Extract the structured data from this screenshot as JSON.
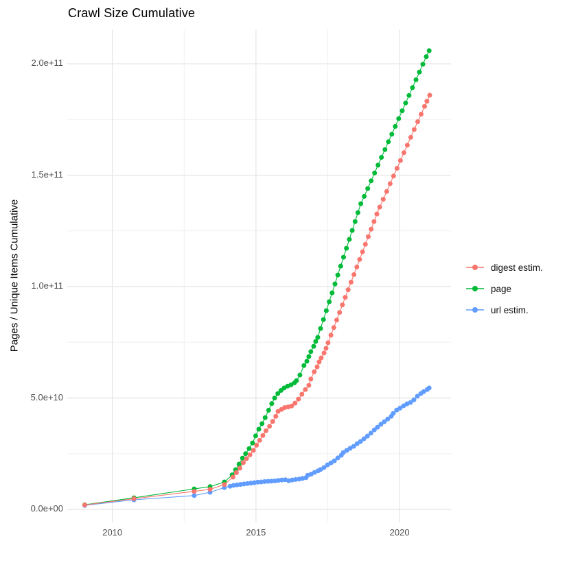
{
  "title": "Crawl Size Cumulative",
  "chart_data": {
    "type": "line",
    "title": "Crawl Size Cumulative",
    "xlabel": "",
    "ylabel": "Pages / Unique Items Cumulative",
    "grid": true,
    "legend_position": "right",
    "x_range": [
      2008.43,
      2021.79
    ],
    "y_range_e9": [
      -5.85,
      215.4
    ],
    "x_ticks": {
      "major": [
        2010,
        2015,
        2020
      ],
      "labels": [
        "2010",
        "2015",
        "2020"
      ],
      "minor": [
        2012.5,
        2017.5
      ]
    },
    "y_ticks": {
      "major_values_e9": [
        0,
        50,
        100,
        150,
        200
      ],
      "labels": [
        "0.0e+00",
        "5.0e+10",
        "1.0e+11",
        "1.5e+11",
        "2.0e+11"
      ],
      "minor_values_e9": [
        25,
        75,
        125,
        175
      ]
    },
    "value_unit": "1e9 (billions of pages / unique items)",
    "series": [
      {
        "name": "digest estim.",
        "color": "#F8766D",
        "points_year_e9": [
          [
            2009.04,
            2.0
          ],
          [
            2010.75,
            4.8
          ],
          [
            2012.85,
            8.1
          ],
          [
            2013.4,
            9.0
          ],
          [
            2013.9,
            11.2
          ],
          [
            2014.2,
            14.5
          ],
          [
            2014.32,
            16.5
          ],
          [
            2014.44,
            18.5
          ],
          [
            2014.56,
            21.0
          ],
          [
            2014.67,
            22.8
          ],
          [
            2014.79,
            24.5
          ],
          [
            2014.91,
            26.5
          ],
          [
            2015.02,
            28.8
          ],
          [
            2015.13,
            31.0
          ],
          [
            2015.24,
            33.2
          ],
          [
            2015.35,
            35.3
          ],
          [
            2015.47,
            37.3
          ],
          [
            2015.58,
            39.5
          ],
          [
            2015.69,
            41.8
          ],
          [
            2015.77,
            44.0
          ],
          [
            2015.89,
            44.9
          ],
          [
            2016.0,
            45.7
          ],
          [
            2016.12,
            46.0
          ],
          [
            2016.24,
            46.4
          ],
          [
            2016.36,
            47.7
          ],
          [
            2016.48,
            49.5
          ],
          [
            2016.6,
            51.7
          ],
          [
            2016.72,
            53.8
          ],
          [
            2016.84,
            55.7
          ],
          [
            2016.91,
            58.5
          ],
          [
            2017.03,
            61.8
          ],
          [
            2017.13,
            64.0
          ],
          [
            2017.2,
            66.2
          ],
          [
            2017.27,
            68.0
          ],
          [
            2017.37,
            70.2
          ],
          [
            2017.44,
            72.3
          ],
          [
            2017.51,
            74.8
          ],
          [
            2017.61,
            78.2
          ],
          [
            2017.71,
            81.6
          ],
          [
            2017.81,
            85.0
          ],
          [
            2017.91,
            88.4
          ],
          [
            2018.01,
            91.8
          ],
          [
            2018.11,
            95.2
          ],
          [
            2018.21,
            98.6
          ],
          [
            2018.31,
            102.0
          ],
          [
            2018.41,
            105.4
          ],
          [
            2018.51,
            108.8
          ],
          [
            2018.61,
            112.2
          ],
          [
            2018.71,
            115.6
          ],
          [
            2018.81,
            119.0
          ],
          [
            2018.91,
            122.4
          ],
          [
            2019.01,
            125.8
          ],
          [
            2019.11,
            129.2
          ],
          [
            2019.21,
            132.6
          ],
          [
            2019.31,
            135.7
          ],
          [
            2019.43,
            139.2
          ],
          [
            2019.55,
            142.7
          ],
          [
            2019.67,
            146.2
          ],
          [
            2019.79,
            149.6
          ],
          [
            2019.91,
            153.1
          ],
          [
            2020.03,
            156.6
          ],
          [
            2020.15,
            160.1
          ],
          [
            2020.27,
            163.5
          ],
          [
            2020.39,
            167.0
          ],
          [
            2020.51,
            170.5
          ],
          [
            2020.63,
            174.0
          ],
          [
            2020.75,
            177.4
          ],
          [
            2020.87,
            180.9
          ],
          [
            2020.95,
            183.2
          ],
          [
            2021.05,
            185.9
          ]
        ]
      },
      {
        "name": "page",
        "color": "#00BA38",
        "points_year_e9": [
          [
            2009.04,
            2.1
          ],
          [
            2010.75,
            5.2
          ],
          [
            2012.85,
            9.2
          ],
          [
            2013.4,
            10.2
          ],
          [
            2013.9,
            12.3
          ],
          [
            2014.17,
            15.5
          ],
          [
            2014.29,
            17.8
          ],
          [
            2014.41,
            20.3
          ],
          [
            2014.53,
            23.0
          ],
          [
            2014.64,
            25.0
          ],
          [
            2014.76,
            27.3
          ],
          [
            2014.88,
            29.8
          ],
          [
            2014.99,
            33.0
          ],
          [
            2015.1,
            36.0
          ],
          [
            2015.21,
            38.5
          ],
          [
            2015.32,
            41.2
          ],
          [
            2015.44,
            44.5
          ],
          [
            2015.55,
            47.5
          ],
          [
            2015.65,
            50.0
          ],
          [
            2015.76,
            52.0
          ],
          [
            2015.87,
            53.4
          ],
          [
            2015.98,
            54.5
          ],
          [
            2016.1,
            55.3
          ],
          [
            2016.22,
            55.9
          ],
          [
            2016.34,
            56.8
          ],
          [
            2016.41,
            57.8
          ],
          [
            2016.53,
            60.3
          ],
          [
            2016.67,
            64.6
          ],
          [
            2016.77,
            66.5
          ],
          [
            2016.84,
            68.6
          ],
          [
            2016.91,
            70.8
          ],
          [
            2017.01,
            73.2
          ],
          [
            2017.08,
            75.4
          ],
          [
            2017.15,
            77.2
          ],
          [
            2017.25,
            81.2
          ],
          [
            2017.35,
            85.2
          ],
          [
            2017.45,
            89.2
          ],
          [
            2017.55,
            93.2
          ],
          [
            2017.65,
            97.2
          ],
          [
            2017.75,
            101.2
          ],
          [
            2017.85,
            105.2
          ],
          [
            2017.95,
            109.2
          ],
          [
            2018.05,
            113.2
          ],
          [
            2018.15,
            117.2
          ],
          [
            2018.25,
            121.2
          ],
          [
            2018.35,
            125.2
          ],
          [
            2018.45,
            129.2
          ],
          [
            2018.55,
            133.2
          ],
          [
            2018.65,
            137.2
          ],
          [
            2018.77,
            140.5
          ],
          [
            2018.89,
            144.0
          ],
          [
            2019.01,
            147.5
          ],
          [
            2019.13,
            151.0
          ],
          [
            2019.25,
            154.5
          ],
          [
            2019.37,
            158.0
          ],
          [
            2019.49,
            161.5
          ],
          [
            2019.61,
            165.0
          ],
          [
            2019.73,
            168.4
          ],
          [
            2019.85,
            171.9
          ],
          [
            2019.97,
            175.4
          ],
          [
            2020.09,
            178.9
          ],
          [
            2020.21,
            182.4
          ],
          [
            2020.33,
            185.8
          ],
          [
            2020.45,
            189.3
          ],
          [
            2020.57,
            192.8
          ],
          [
            2020.69,
            196.3
          ],
          [
            2020.81,
            199.8
          ],
          [
            2020.93,
            203.2
          ],
          [
            2021.03,
            205.9
          ]
        ]
      },
      {
        "name": "url estim.",
        "color": "#619CFF",
        "points_year_e9": [
          [
            2009.04,
            1.8
          ],
          [
            2010.75,
            4.3
          ],
          [
            2012.85,
            6.2
          ],
          [
            2013.4,
            7.7
          ],
          [
            2013.9,
            9.8
          ],
          [
            2014.1,
            10.4
          ],
          [
            2014.22,
            10.8
          ],
          [
            2014.34,
            11.0
          ],
          [
            2014.46,
            11.2
          ],
          [
            2014.58,
            11.4
          ],
          [
            2014.7,
            11.6
          ],
          [
            2014.82,
            11.8
          ],
          [
            2014.94,
            12.0
          ],
          [
            2015.06,
            12.2
          ],
          [
            2015.18,
            12.3
          ],
          [
            2015.3,
            12.5
          ],
          [
            2015.42,
            12.6
          ],
          [
            2015.54,
            12.7
          ],
          [
            2015.66,
            12.8
          ],
          [
            2015.78,
            13.0
          ],
          [
            2015.9,
            13.2
          ],
          [
            2016.02,
            13.3
          ],
          [
            2016.14,
            12.9
          ],
          [
            2016.26,
            13.2
          ],
          [
            2016.38,
            13.4
          ],
          [
            2016.5,
            13.6
          ],
          [
            2016.62,
            13.9
          ],
          [
            2016.74,
            14.2
          ],
          [
            2016.8,
            15.3
          ],
          [
            2016.92,
            15.8
          ],
          [
            2017.04,
            16.6
          ],
          [
            2017.16,
            17.3
          ],
          [
            2017.25,
            17.9
          ],
          [
            2017.37,
            18.8
          ],
          [
            2017.49,
            20.0
          ],
          [
            2017.61,
            20.9
          ],
          [
            2017.73,
            21.8
          ],
          [
            2017.85,
            23.1
          ],
          [
            2017.97,
            24.3
          ],
          [
            2018.04,
            25.5
          ],
          [
            2018.16,
            26.5
          ],
          [
            2018.28,
            27.4
          ],
          [
            2018.4,
            28.3
          ],
          [
            2018.52,
            29.5
          ],
          [
            2018.64,
            30.5
          ],
          [
            2018.76,
            31.7
          ],
          [
            2018.88,
            32.9
          ],
          [
            2019.0,
            34.2
          ],
          [
            2019.12,
            35.7
          ],
          [
            2019.23,
            36.9
          ],
          [
            2019.35,
            38.2
          ],
          [
            2019.47,
            39.4
          ],
          [
            2019.59,
            40.6
          ],
          [
            2019.71,
            41.8
          ],
          [
            2019.78,
            43.1
          ],
          [
            2019.9,
            44.6
          ],
          [
            2020.02,
            45.5
          ],
          [
            2020.14,
            46.5
          ],
          [
            2020.26,
            47.4
          ],
          [
            2020.38,
            48.0
          ],
          [
            2020.5,
            49.2
          ],
          [
            2020.62,
            50.8
          ],
          [
            2020.74,
            52.0
          ],
          [
            2020.84,
            52.9
          ],
          [
            2020.96,
            53.8
          ],
          [
            2021.03,
            54.5
          ]
        ]
      }
    ]
  },
  "legend": {
    "items": [
      {
        "label": "digest estim.",
        "color": "#F8766D"
      },
      {
        "label": "page",
        "color": "#00BA38"
      },
      {
        "label": "url estim.",
        "color": "#619CFF"
      }
    ]
  },
  "colors": {
    "background": "#FFFFFF",
    "grid_major": "#E8E8E8",
    "grid_minor": "#F0F0F0",
    "tick_label": "#4d4d4d",
    "title_text": "#000000"
  }
}
